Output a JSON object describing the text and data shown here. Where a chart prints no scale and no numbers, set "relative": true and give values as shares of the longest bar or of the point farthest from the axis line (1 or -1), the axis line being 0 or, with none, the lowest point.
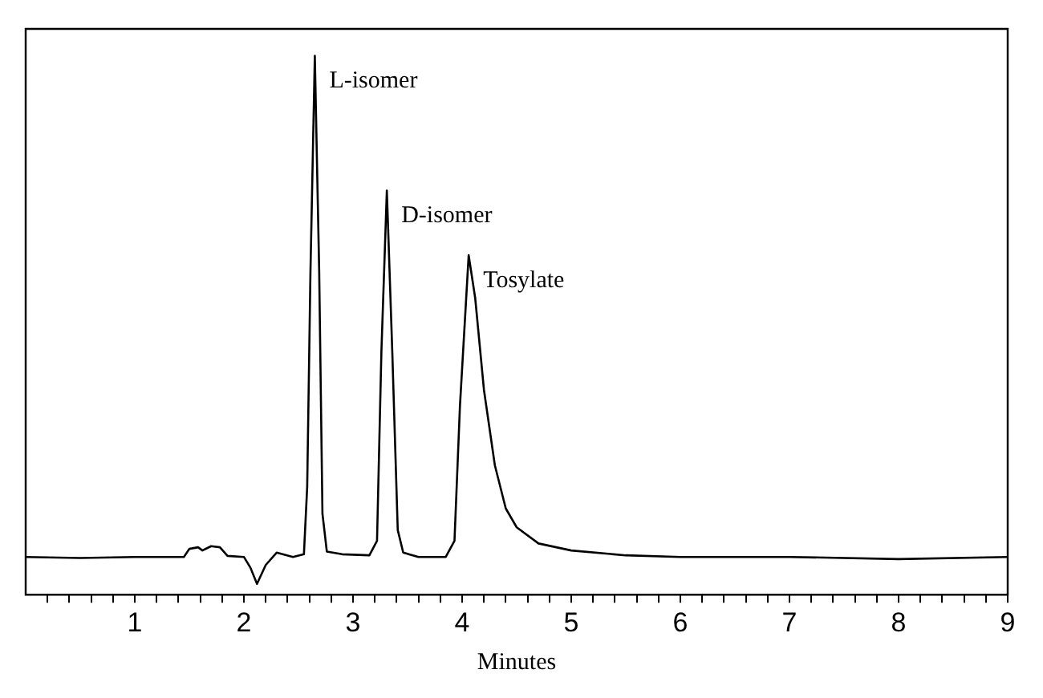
{
  "chart_data": {
    "type": "line",
    "relative": true,
    "xlabel": "Minutes",
    "xlim": [
      0,
      9
    ],
    "xticks": [
      {
        "value": 0.2,
        "label": null
      },
      {
        "value": 0.4,
        "label": null
      },
      {
        "value": 0.6,
        "label": null
      },
      {
        "value": 0.8,
        "label": null
      },
      1,
      {
        "value": 1.2,
        "label": null
      },
      {
        "value": 1.4,
        "label": null
      },
      {
        "value": 1.6,
        "label": null
      },
      {
        "value": 1.8,
        "label": null
      },
      2,
      {
        "value": 2.2,
        "label": null
      },
      {
        "value": 2.4,
        "label": null
      },
      {
        "value": 2.6,
        "label": null
      },
      {
        "value": 2.8,
        "label": null
      },
      3,
      {
        "value": 3.2,
        "label": null
      },
      {
        "value": 3.4,
        "label": null
      },
      {
        "value": 3.6,
        "label": null
      },
      {
        "value": 3.8,
        "label": null
      },
      4,
      {
        "value": 4.2,
        "label": null
      },
      {
        "value": 4.4,
        "label": null
      },
      {
        "value": 4.6,
        "label": null
      },
      {
        "value": 4.8,
        "label": null
      },
      5,
      {
        "value": 5.2,
        "label": null
      },
      {
        "value": 5.4,
        "label": null
      },
      {
        "value": 5.6,
        "label": null
      },
      {
        "value": 5.8,
        "label": null
      },
      6,
      {
        "value": 6.2,
        "label": null
      },
      {
        "value": 6.4,
        "label": null
      },
      {
        "value": 6.6,
        "label": null
      },
      {
        "value": 6.8,
        "label": null
      },
      7,
      {
        "value": 7.2,
        "label": null
      },
      {
        "value": 7.4,
        "label": null
      },
      {
        "value": 7.6,
        "label": null
      },
      {
        "value": 7.8,
        "label": null
      },
      8,
      {
        "value": 8.2,
        "label": null
      },
      {
        "value": 8.4,
        "label": null
      },
      {
        "value": 8.6,
        "label": null
      },
      {
        "value": 8.8,
        "label": null
      },
      9
    ],
    "x": [
      0,
      0.5,
      1.0,
      1.45,
      1.5,
      1.58,
      1.62,
      1.7,
      1.78,
      1.85,
      2.0,
      2.06,
      2.12,
      2.2,
      2.3,
      2.45,
      2.55,
      2.58,
      2.61,
      2.65,
      2.69,
      2.72,
      2.76,
      2.9,
      3.15,
      3.22,
      3.26,
      3.31,
      3.36,
      3.41,
      3.46,
      3.6,
      3.85,
      3.93,
      3.98,
      4.06,
      4.12,
      4.2,
      4.3,
      4.4,
      4.5,
      4.7,
      5.0,
      5.5,
      6,
      7,
      8,
      9
    ],
    "series": [
      {
        "color": "#000000",
        "values": [
          0.07,
          0.068,
          0.07,
          0.07,
          0.085,
          0.088,
          0.082,
          0.09,
          0.088,
          0.072,
          0.07,
          0.05,
          0.02,
          0.055,
          0.078,
          0.07,
          0.075,
          0.2,
          0.6,
          1.0,
          0.6,
          0.15,
          0.08,
          0.075,
          0.073,
          0.1,
          0.45,
          0.75,
          0.45,
          0.12,
          0.078,
          0.07,
          0.07,
          0.1,
          0.35,
          0.63,
          0.55,
          0.38,
          0.24,
          0.16,
          0.125,
          0.095,
          0.082,
          0.073,
          0.07,
          0.07,
          0.066,
          0.07
        ]
      }
    ],
    "annotations": [
      {
        "text": "L-isomer",
        "x": 2.65,
        "y": 1.0
      },
      {
        "text": "D-isomer",
        "x": 3.31,
        "y": 0.75
      },
      {
        "text": "Tosylate",
        "x": 4.06,
        "y": 0.63
      }
    ],
    "grid": false,
    "legend": false,
    "marker": "none",
    "line_style": "solid"
  }
}
